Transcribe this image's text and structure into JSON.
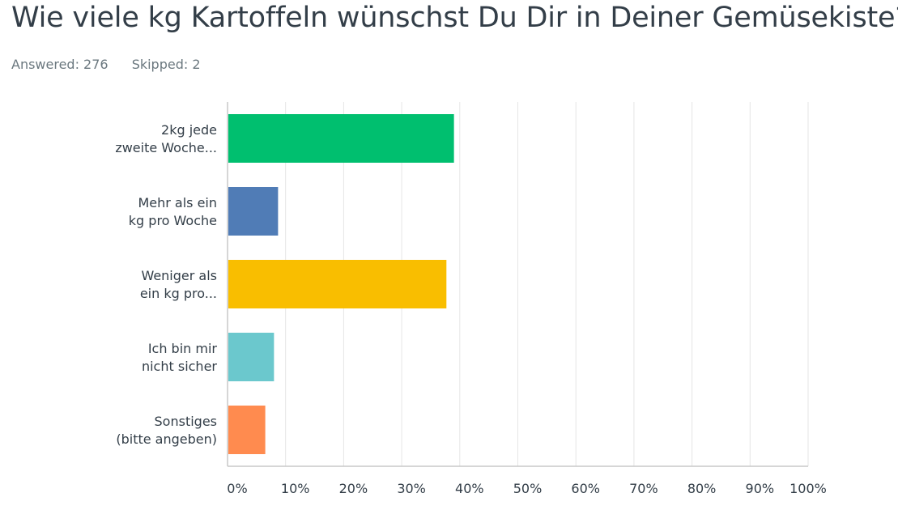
{
  "question": {
    "title": "Wie viele kg Kartoffeln wünschst Du Dir in Deiner Gemüsekiste?",
    "answered_label": "Answered: 276",
    "skipped_label": "Skipped: 2"
  },
  "colors": {
    "gridline": "#e5e5e5",
    "axis": "#c8c8c8",
    "text": "#333e48"
  },
  "chart_data": {
    "type": "bar",
    "orientation": "horizontal",
    "categories": [
      [
        "2kg jede",
        "zweite Woche..."
      ],
      [
        "Mehr als ein",
        "kg pro Woche"
      ],
      [
        "Weniger als",
        "ein kg pro..."
      ],
      [
        "Ich bin mir",
        "nicht sicher"
      ],
      [
        "Sonstiges",
        "(bitte angeben)"
      ]
    ],
    "values": [
      39,
      8.7,
      37.7,
      8,
      6.5
    ],
    "bar_colors": [
      "#00bf6f",
      "#507cb6",
      "#f9be00",
      "#6bc8cd",
      "#ff8b4f"
    ],
    "xlim": [
      0,
      100
    ],
    "xticks": [
      0,
      10,
      20,
      30,
      40,
      50,
      60,
      70,
      80,
      90,
      100
    ],
    "tick_labels": [
      "0%",
      "10%",
      "20%",
      "30%",
      "40%",
      "50%",
      "60%",
      "70%",
      "80%",
      "90%",
      "100%"
    ],
    "grid": true
  }
}
